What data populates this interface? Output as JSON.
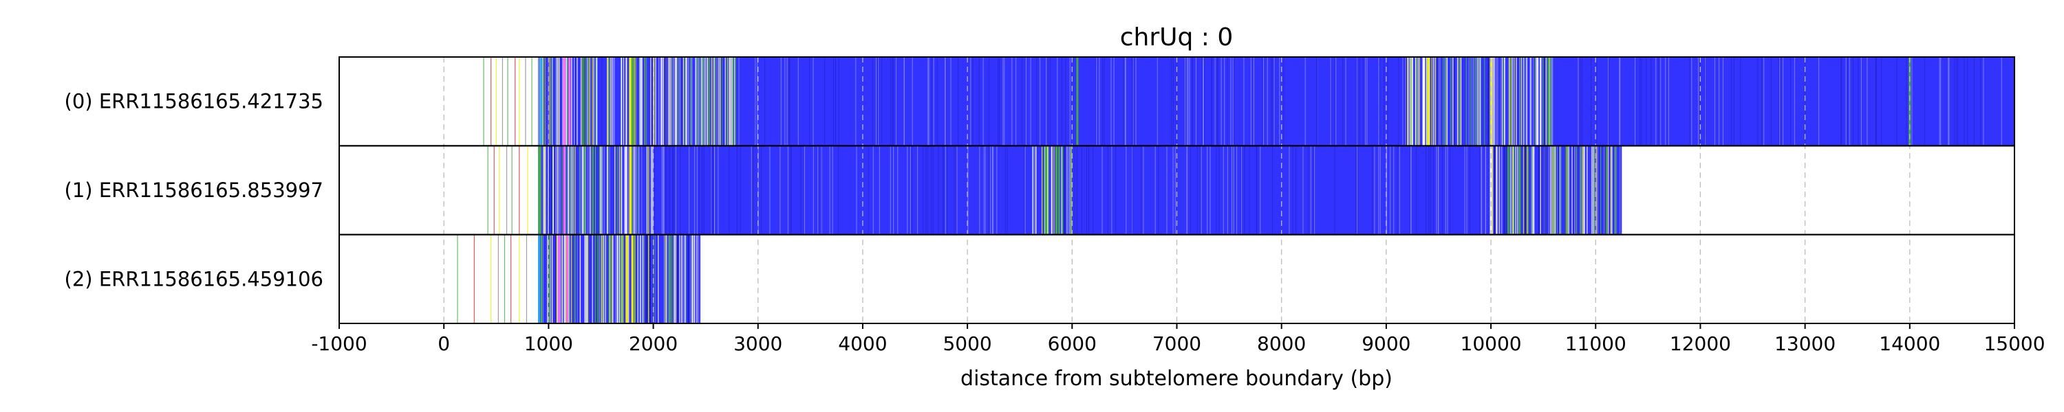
{
  "chart_data": {
    "type": "track-plot",
    "title": "chrUq : 0",
    "xlabel": "distance from subtelomere boundary (bp)",
    "xlim": [
      -1000,
      15000
    ],
    "x_ticks": [
      -1000,
      0,
      1000,
      2000,
      3000,
      4000,
      5000,
      6000,
      7000,
      8000,
      9000,
      10000,
      11000,
      12000,
      13000,
      14000,
      15000
    ],
    "grid": "vertical dashed at each x tick",
    "colors": {
      "fill": "#3333ff",
      "accent_green": "#44aa44",
      "accent_yellow": "#eeee00",
      "accent_magenta": "#ff66ff",
      "accent_cyan": "#22aaee",
      "accent_red": "#cc3333",
      "thin_line": "#ffffff",
      "grid": "#bbbbbb",
      "axis": "#000000"
    },
    "reads": [
      {
        "label": "(0) ERR11586165.421735",
        "start_bp": 900,
        "end_bp": 15000,
        "sparse_marks_bp": [
          380,
          450,
          500,
          560,
          610,
          680,
          720,
          780,
          840
        ],
        "dense_bands_bp": [
          [
            900,
            2800
          ],
          [
            9200,
            10600
          ]
        ],
        "accent_marks": [
          {
            "bp": 930,
            "color": "cyan"
          },
          {
            "bp": 1150,
            "color": "magenta"
          },
          {
            "bp": 1200,
            "color": "magenta"
          },
          {
            "bp": 1780,
            "color": "yellow"
          },
          {
            "bp": 1800,
            "color": "green"
          },
          {
            "bp": 6050,
            "color": "green"
          },
          {
            "bp": 9400,
            "color": "yellow"
          },
          {
            "bp": 10000,
            "color": "yellow"
          },
          {
            "bp": 10550,
            "color": "green"
          },
          {
            "bp": 14000,
            "color": "green"
          }
        ]
      },
      {
        "label": "(1) ERR11586165.853997",
        "start_bp": 900,
        "end_bp": 11250,
        "sparse_marks_bp": [
          420,
          480,
          530,
          600,
          650,
          720,
          800
        ],
        "dense_bands_bp": [
          [
            900,
            2000
          ],
          [
            5600,
            6000
          ],
          [
            10000,
            11200
          ]
        ],
        "accent_marks": [
          {
            "bp": 920,
            "color": "green"
          },
          {
            "bp": 1150,
            "color": "magenta"
          },
          {
            "bp": 1780,
            "color": "yellow"
          },
          {
            "bp": 5750,
            "color": "green"
          },
          {
            "bp": 5850,
            "color": "green"
          },
          {
            "bp": 10000,
            "color": "white"
          }
        ]
      },
      {
        "label": "(2) ERR11586165.459106",
        "start_bp": 900,
        "end_bp": 2450,
        "sparse_marks_bp": [
          130,
          290,
          450,
          520,
          580,
          640,
          720,
          790
        ],
        "dense_bands_bp": [
          [
            900,
            2450
          ]
        ],
        "accent_marks": [
          {
            "bp": 910,
            "color": "cyan"
          },
          {
            "bp": 1100,
            "color": "magenta"
          },
          {
            "bp": 1180,
            "color": "magenta"
          },
          {
            "bp": 1750,
            "color": "yellow"
          },
          {
            "bp": 1800,
            "color": "yellow"
          }
        ]
      }
    ]
  }
}
